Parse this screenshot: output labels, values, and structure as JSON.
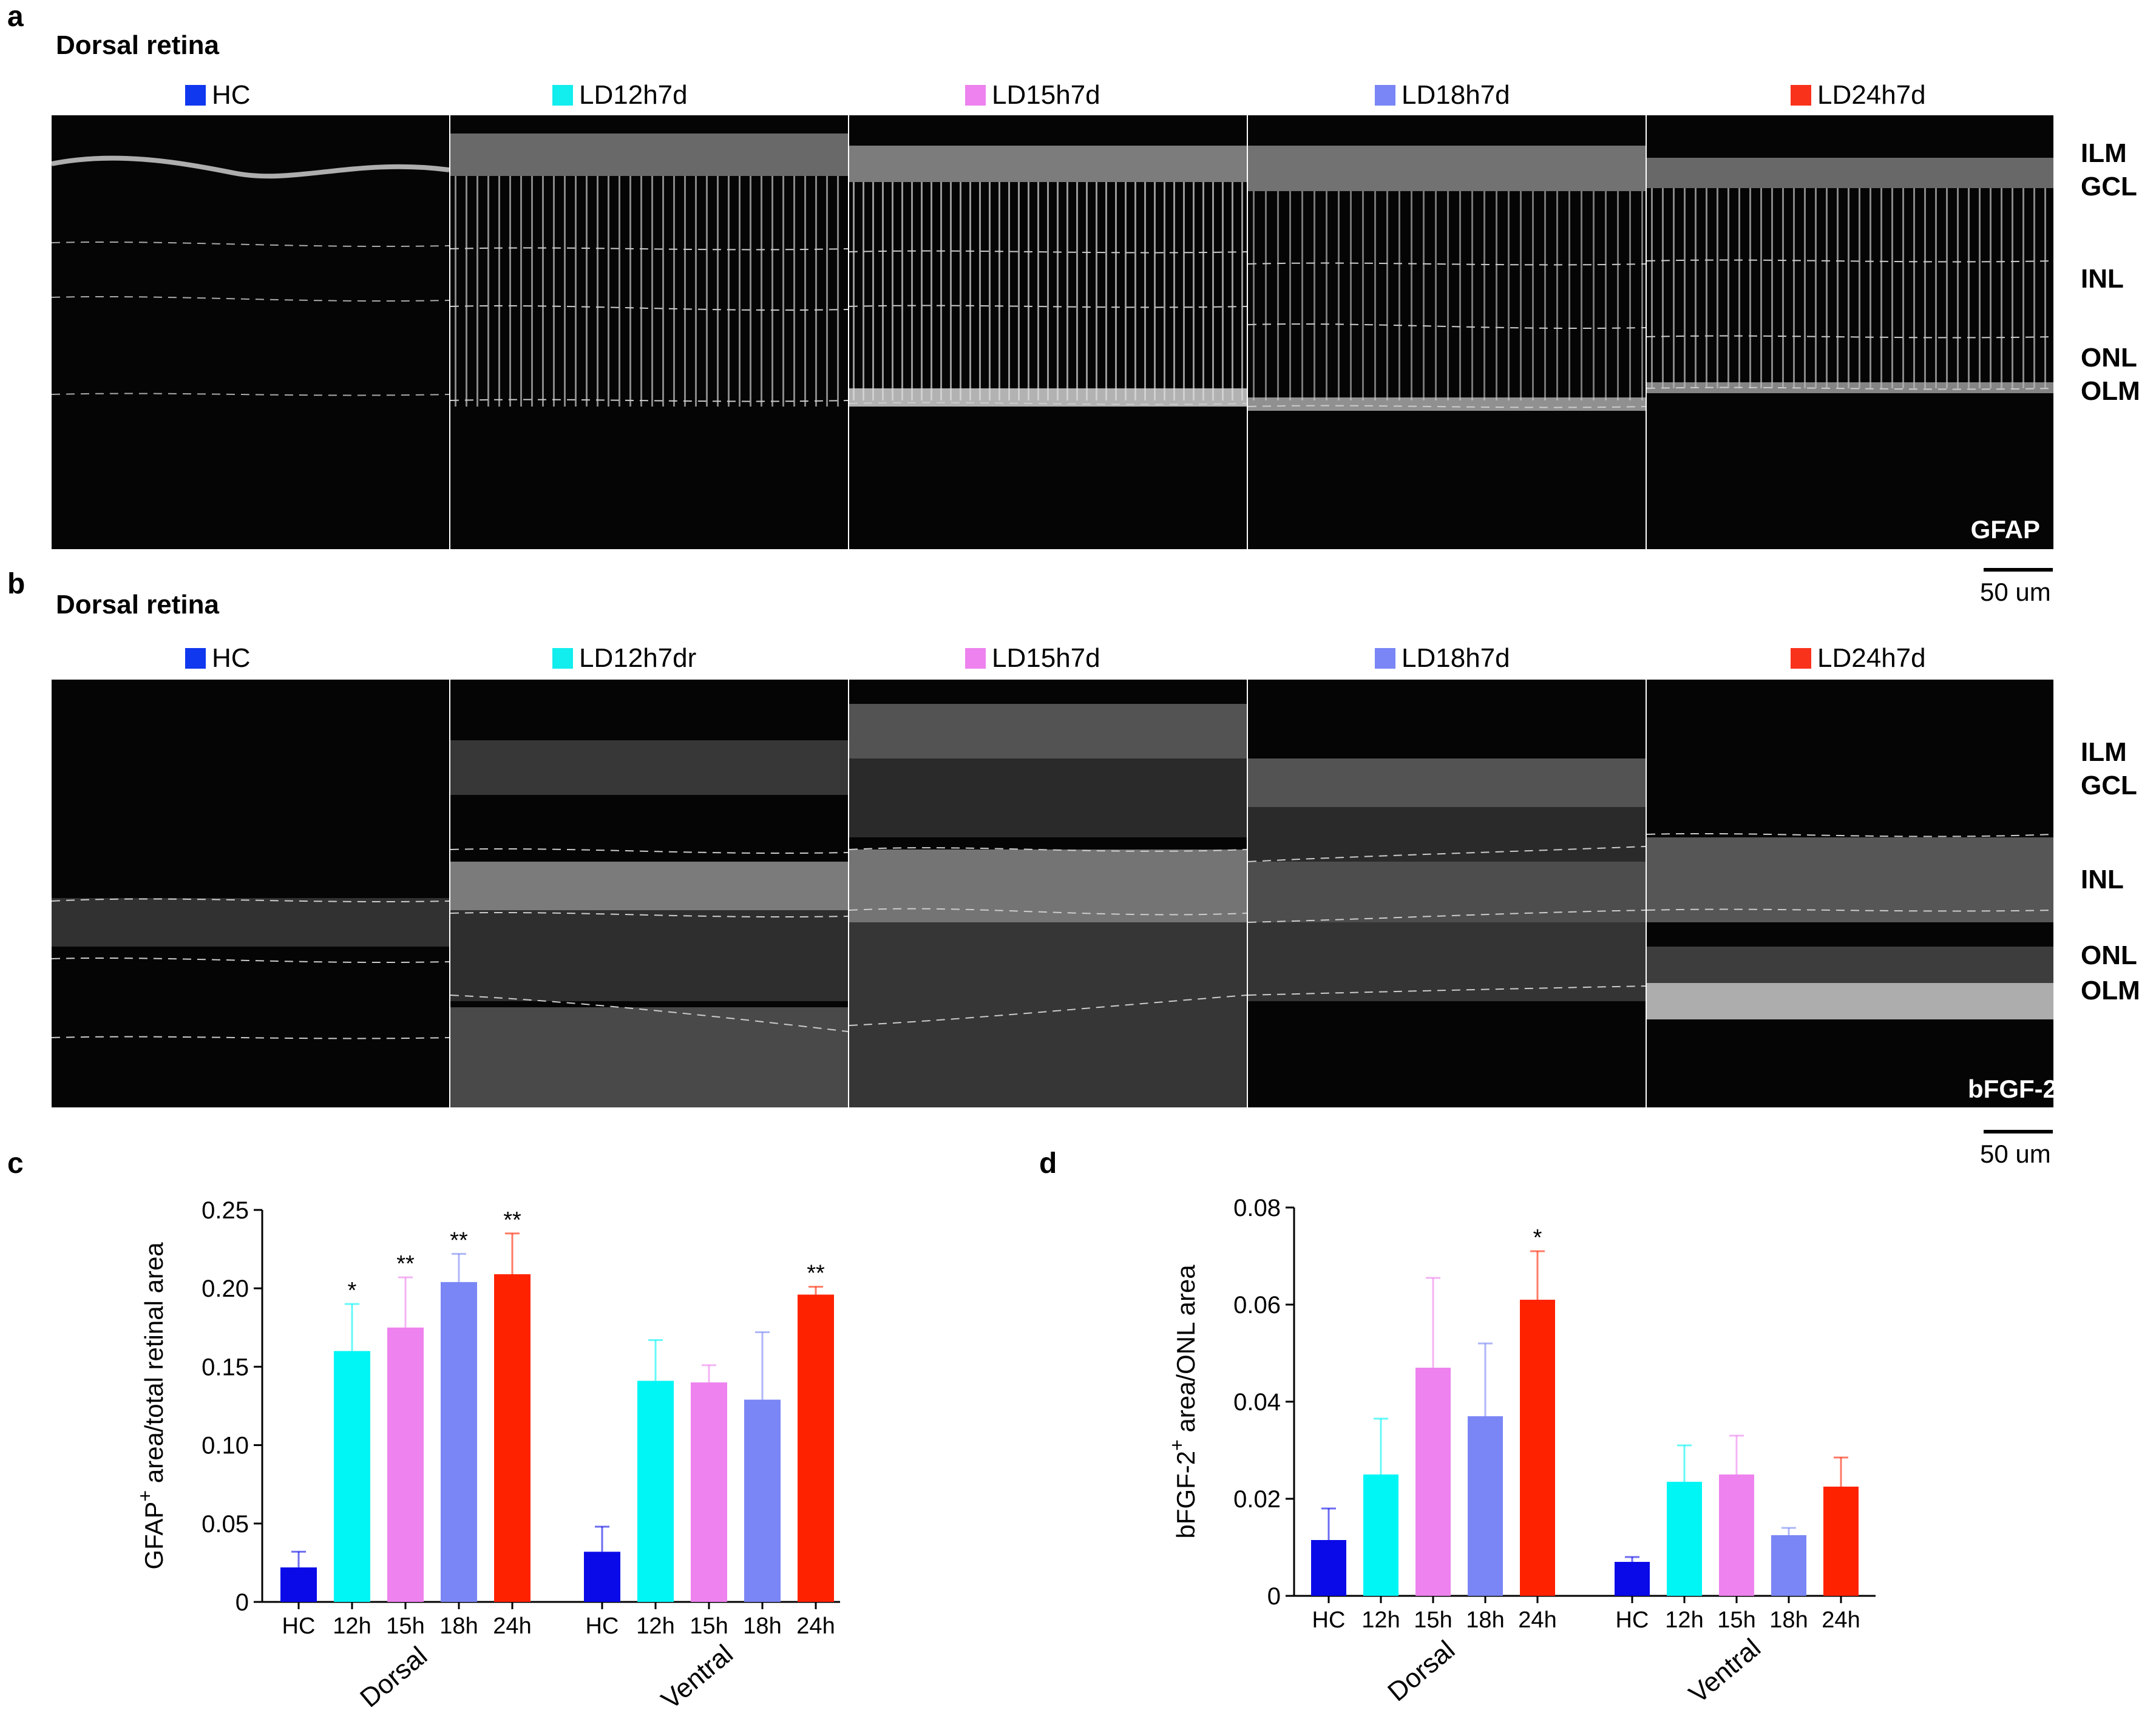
{
  "panel_a": {
    "label": "a",
    "title": "Dorsal retina",
    "legend": [
      {
        "label": "HC",
        "color": "#1038ee"
      },
      {
        "label": "LD12h7d",
        "color": "#12eded"
      },
      {
        "label": "LD15h7d",
        "color": "#ee82ee"
      },
      {
        "label": "LD18h7d",
        "color": "#7a86f5"
      },
      {
        "label": "LD24h7d",
        "color": "#f9321c"
      }
    ],
    "layers": [
      "ILM",
      "GCL",
      "INL",
      "ONL",
      "OLM"
    ],
    "stain": "GFAP",
    "scale_bar": "50 um"
  },
  "panel_b": {
    "label": "b",
    "title": "Dorsal retina",
    "legend": [
      {
        "label": "HC",
        "color": "#1038ee"
      },
      {
        "label": "LD12h7dr",
        "color": "#12eded"
      },
      {
        "label": "LD15h7d",
        "color": "#ee82ee"
      },
      {
        "label": "LD18h7d",
        "color": "#7a86f5"
      },
      {
        "label": "LD24h7d",
        "color": "#f9321c"
      }
    ],
    "layers": [
      "ILM",
      "GCL",
      "INL",
      "ONL",
      "OLM"
    ],
    "stain": "bFGF-2",
    "scale_bar": "50 um"
  },
  "chart_data": [
    {
      "panel": "c",
      "type": "bar",
      "ylabel": "GFAP+ area/total retinal area",
      "ylabel_main": "GFAP",
      "ylabel_sup": "+",
      "ylabel_rest": " area/total retinal area",
      "ylim": [
        0,
        0.25
      ],
      "yticks": [
        "0",
        "0.05",
        "0.10",
        "0.15",
        "0.20",
        "0.25"
      ],
      "tick_values": [
        0,
        0.05,
        0.1,
        0.15,
        0.2,
        0.25
      ],
      "categories": [
        "HC",
        "12h",
        "15h",
        "18h",
        "24h"
      ],
      "groups": [
        {
          "name": "Dorsal",
          "values": [
            0.022,
            0.16,
            0.175,
            0.204,
            0.209
          ],
          "errors": [
            0.01,
            0.03,
            0.032,
            0.018,
            0.026
          ],
          "sig": [
            "",
            "*",
            "**",
            "**",
            "**"
          ]
        },
        {
          "name": "Ventral",
          "values": [
            0.032,
            0.141,
            0.14,
            0.129,
            0.196
          ],
          "errors": [
            0.016,
            0.026,
            0.011,
            0.043,
            0.005
          ],
          "sig": [
            "",
            "",
            "",
            "",
            "**"
          ]
        }
      ],
      "colors": [
        "#0a0ae8",
        "#00f5f5",
        "#ee82ee",
        "#7a86f5",
        "#ff2200"
      ],
      "grid": false
    },
    {
      "panel": "d",
      "type": "bar",
      "ylabel": "bFGF-2+ area/ONL area",
      "ylabel_main": "bFGF-2",
      "ylabel_sup": "+",
      "ylabel_rest": " area/ONL area",
      "ylim": [
        0,
        0.08
      ],
      "yticks": [
        "0",
        "0.02",
        "0.04",
        "0.06",
        "0.08"
      ],
      "tick_values": [
        0,
        0.02,
        0.04,
        0.06,
        0.08
      ],
      "categories": [
        "HC",
        "12h",
        "15h",
        "18h",
        "24h"
      ],
      "groups": [
        {
          "name": "Dorsal",
          "values": [
            0.0115,
            0.025,
            0.047,
            0.037,
            0.061
          ],
          "errors": [
            0.0065,
            0.0115,
            0.0185,
            0.015,
            0.01
          ],
          "sig": [
            "",
            "",
            "",
            "",
            "*"
          ]
        },
        {
          "name": "Ventral",
          "values": [
            0.007,
            0.0235,
            0.025,
            0.0125,
            0.0225
          ],
          "errors": [
            0.001,
            0.0075,
            0.008,
            0.0015,
            0.006
          ],
          "sig": [
            "",
            "",
            "",
            "",
            ""
          ]
        }
      ],
      "colors": [
        "#0a0ae8",
        "#00f5f5",
        "#ee82ee",
        "#7a86f5",
        "#ff2200"
      ],
      "grid": false
    }
  ]
}
